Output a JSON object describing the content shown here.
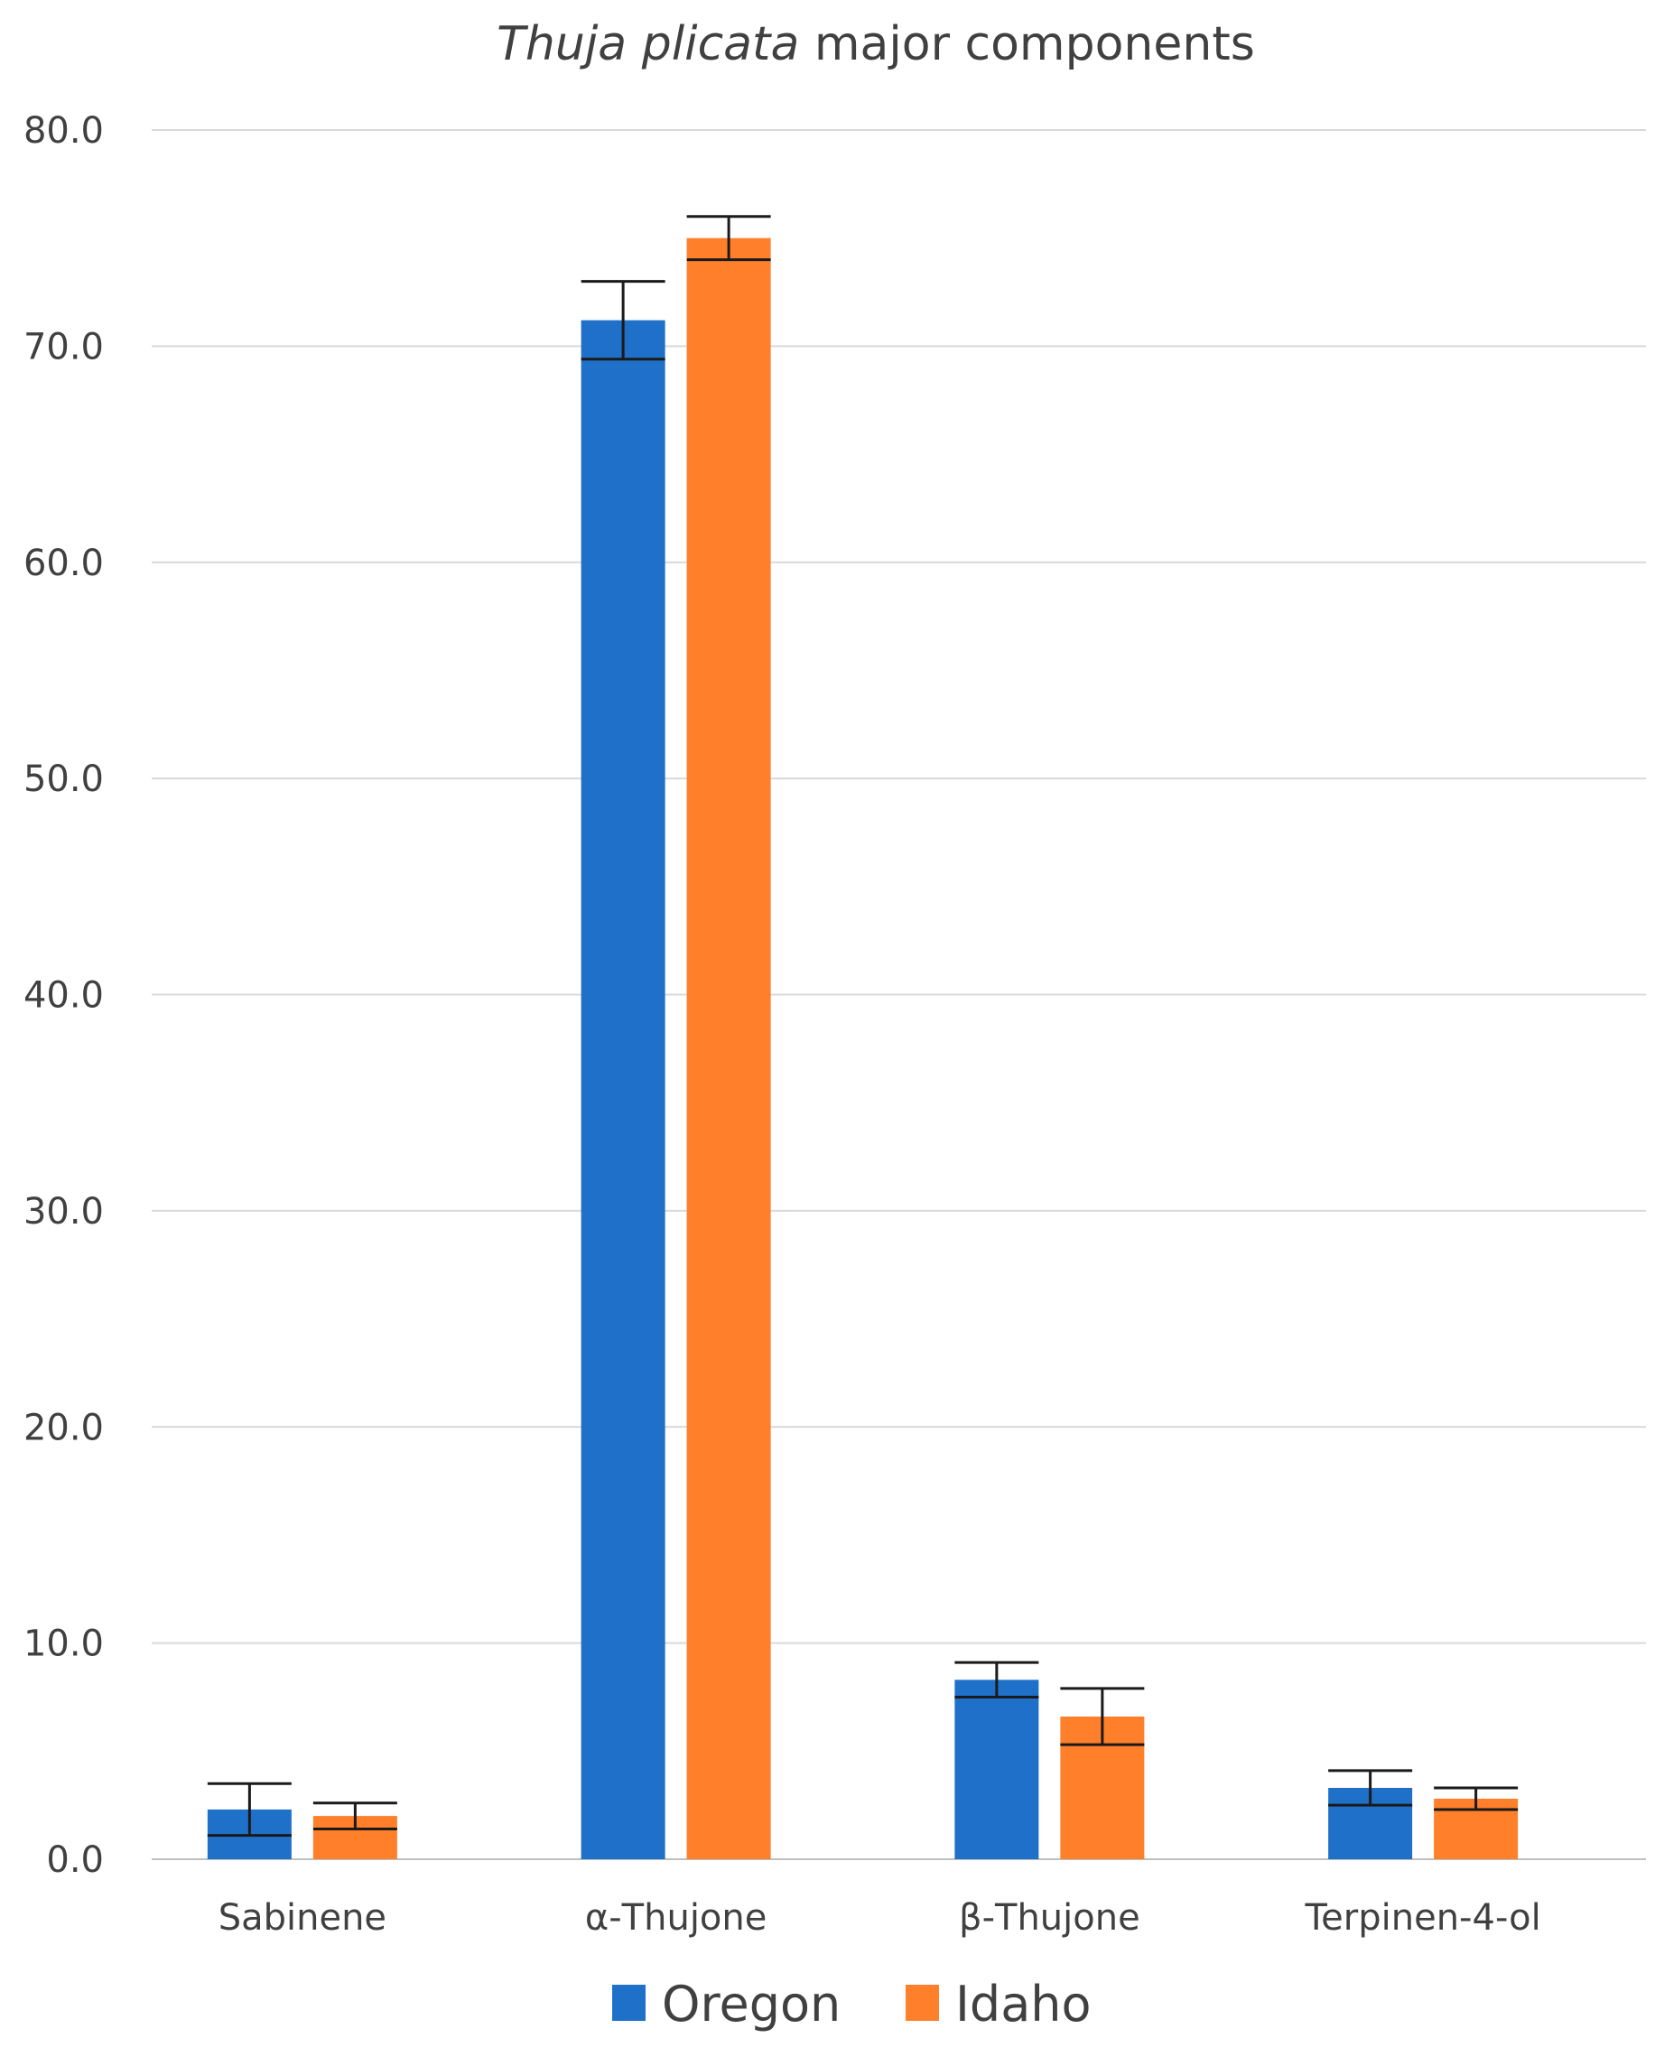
{
  "chart_data": {
    "type": "bar",
    "title_italic": "Thuja plicata",
    "title_rest": " major components",
    "xlabel": "",
    "ylabel": "",
    "ylim": [
      0,
      80
    ],
    "yticks": [
      "0.0",
      "10.0",
      "20.0",
      "30.0",
      "40.0",
      "50.0",
      "60.0",
      "70.0",
      "80.0"
    ],
    "ytick_values": [
      0,
      10,
      20,
      30,
      40,
      50,
      60,
      70,
      80
    ],
    "categories": [
      "Sabinene",
      "α-Thujone",
      "β-Thujone",
      "Terpinen-4-ol"
    ],
    "series": [
      {
        "name": "Oregon",
        "color": "#1f70c8",
        "values": [
          2.3,
          71.2,
          8.3,
          3.3
        ],
        "error": [
          1.2,
          1.8,
          0.8,
          0.8
        ]
      },
      {
        "name": "Idaho",
        "color": "#ff7f2a",
        "values": [
          2.0,
          75.0,
          6.6,
          2.8
        ],
        "error": [
          0.6,
          1.0,
          1.3,
          0.5
        ]
      }
    ],
    "grid": true,
    "legend_position": "bottom"
  }
}
